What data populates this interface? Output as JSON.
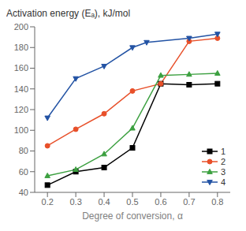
{
  "chart_data": {
    "type": "line",
    "title": "Activation energy (Eₐ), kJ/mol",
    "x_label": "Degree of conversion, α",
    "x": [
      0.2,
      0.3,
      0.4,
      0.5,
      0.55,
      0.6,
      0.7,
      0.8
    ],
    "series": [
      {
        "name": "1",
        "color": "#000000",
        "marker": "square",
        "values": [
          47,
          60,
          64,
          83,
          null,
          145,
          144,
          145
        ]
      },
      {
        "name": "2",
        "color": "#e8502a",
        "marker": "circle",
        "values": [
          85,
          101,
          116,
          138,
          null,
          145,
          186,
          189
        ]
      },
      {
        "name": "3",
        "color": "#3ca040",
        "marker": "triangle-up",
        "values": [
          56,
          62,
          77,
          102,
          null,
          153,
          154,
          155
        ]
      },
      {
        "name": "4",
        "color": "#2353a4",
        "marker": "triangle-down",
        "values": [
          112,
          150,
          162,
          180,
          185,
          null,
          189,
          193
        ]
      }
    ],
    "xlim": [
      0.155,
      0.845
    ],
    "ylim": [
      40,
      200
    ],
    "xticks": [
      0.2,
      0.3,
      0.4,
      0.5,
      0.6,
      0.7,
      0.8
    ],
    "yticks": [
      40,
      60,
      80,
      100,
      120,
      140,
      160,
      180,
      200
    ],
    "grid": false,
    "legend": "lower right"
  }
}
